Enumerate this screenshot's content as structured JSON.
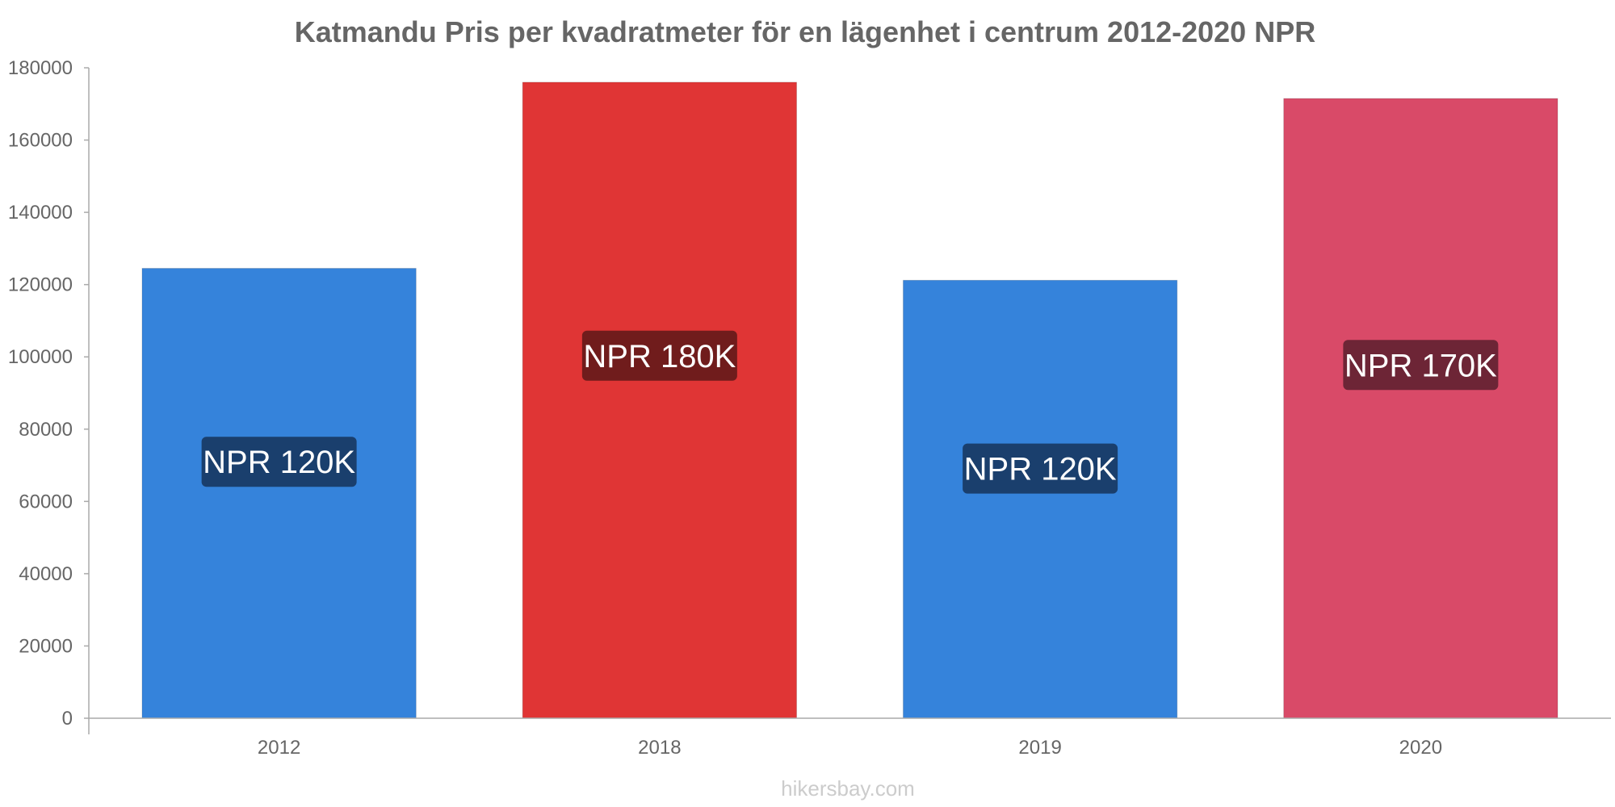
{
  "chart_data": {
    "type": "bar",
    "title": "Katmandu Pris per kvadratmeter för en lägenhet i centrum 2012-2020 NPR",
    "categories": [
      "2012",
      "2018",
      "2019",
      "2020"
    ],
    "values": [
      124500,
      176000,
      121200,
      171500
    ],
    "data_labels": [
      "NPR 120K",
      "NPR 180K",
      "NPR 120K",
      "NPR 170K"
    ],
    "bar_colors": [
      "#3583db",
      "#e03535",
      "#3583db",
      "#d94a68"
    ],
    "label_bg_colors": [
      "#1a3f6d",
      "#701c1c",
      "#1a3f6d",
      "#6d2536"
    ],
    "ylim": [
      0,
      180000
    ],
    "yticks": [
      0,
      20000,
      40000,
      60000,
      80000,
      100000,
      120000,
      140000,
      160000,
      180000
    ],
    "xlabel": "",
    "ylabel": "",
    "grid": false,
    "legend": "none"
  },
  "source": "hikersbay.com"
}
